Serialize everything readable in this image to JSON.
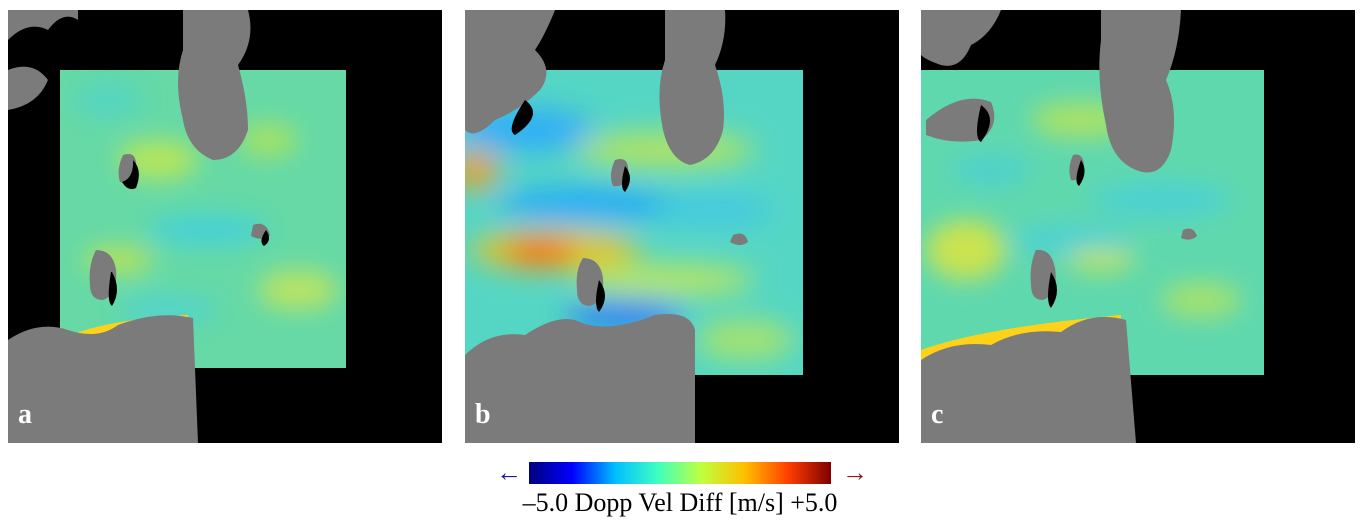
{
  "panels": [
    {
      "label": "a",
      "variant": "a"
    },
    {
      "label": "b",
      "variant": "b"
    },
    {
      "label": "c",
      "variant": "c"
    }
  ],
  "colorbar": {
    "caption": "–5.0 Dopp Vel Diff [m/s] +5.0",
    "min": -5.0,
    "max": 5.0,
    "left_arrow": "←",
    "right_arrow": "→",
    "left_arrow_color": "#1a1aa0",
    "right_arrow_color": "#8b1a1a",
    "stops": [
      "#00007f",
      "#0000ff",
      "#00bfff",
      "#40ffbf",
      "#bfff40",
      "#ffbf00",
      "#ff3f00",
      "#7f0000"
    ]
  },
  "colors": {
    "background": "#000000",
    "land": "#7b7b7b",
    "field_base_a": "#62d8a8",
    "field_base_b": "#4ad4c8",
    "field_base_c": "#5fd8b0"
  }
}
